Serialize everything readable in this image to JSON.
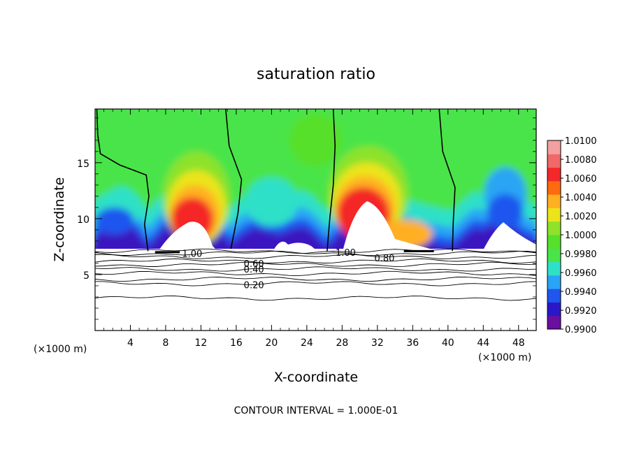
{
  "chart_data": {
    "type": "heatmap",
    "title": "saturation ratio",
    "xlabel": "X-coordinate",
    "ylabel": "Z-coordinate",
    "x_unit": "(×1000 m)",
    "x_unit_right": "(×1000 m)",
    "xlim": [
      0,
      50
    ],
    "ylim": [
      0,
      19.8
    ],
    "x_ticks": [
      4,
      8,
      12,
      16,
      20,
      24,
      28,
      32,
      36,
      40,
      44,
      48
    ],
    "x_tick_labels": [
      "4",
      "8",
      "12",
      "16",
      "20",
      "24",
      "28",
      "32",
      "36",
      "40",
      "44",
      "48"
    ],
    "y_ticks": [
      5,
      10,
      15
    ],
    "y_tick_labels": [
      "5",
      "10",
      "15"
    ],
    "colorbar": {
      "min": 0.99,
      "max": 1.01,
      "tick_labels": [
        "1.0100",
        "1.0080",
        "1.0060",
        "1.0040",
        "1.0020",
        "1.0000",
        "0.9980",
        "0.9960",
        "0.9940",
        "0.9920",
        "0.9900"
      ],
      "colors": [
        "#6a0fa0",
        "#2a18c8",
        "#1f56ee",
        "#2aa4f4",
        "#2fe0c8",
        "#49e44a",
        "#56e02a",
        "#8ee22a",
        "#ece41a",
        "#ffb020",
        "#ff6a10",
        "#f42828",
        "#f06868",
        "#f4a0a0"
      ]
    },
    "cloud_tops_km": [
      {
        "x": 0.0,
        "top": 8.1
      },
      {
        "x": 1.0,
        "top": 8.5
      },
      {
        "x": 2.0,
        "top": 9.0
      },
      {
        "x": 3.0,
        "top": 9.3
      },
      {
        "x": 4.0,
        "top": 9.0
      },
      {
        "x": 5.0,
        "top": 8.2
      },
      {
        "x": 6.0,
        "top": 7.1
      },
      {
        "x": 8.0,
        "top": 8.9
      },
      {
        "x": 10.0,
        "top": 9.9
      },
      {
        "x": 12.0,
        "top": 10.2
      },
      {
        "x": 14.0,
        "top": 8.6
      },
      {
        "x": 15.4,
        "top": 7.3
      },
      {
        "x": 16.5,
        "top": 8.1
      },
      {
        "x": 18.0,
        "top": 8.8
      },
      {
        "x": 20.0,
        "top": 8.4
      },
      {
        "x": 21.0,
        "top": 8.2
      },
      {
        "x": 22.0,
        "top": 8.6
      },
      {
        "x": 23.5,
        "top": 8.9
      },
      {
        "x": 24.5,
        "top": 8.5
      },
      {
        "x": 26.3,
        "top": 7.1
      },
      {
        "x": 28.0,
        "top": 8.6
      },
      {
        "x": 30.0,
        "top": 10.8
      },
      {
        "x": 32.0,
        "top": 10.2
      },
      {
        "x": 34.0,
        "top": 8.7
      },
      {
        "x": 36.0,
        "top": 7.9
      },
      {
        "x": 38.5,
        "top": 7.4
      },
      {
        "x": 40.5,
        "top": 7.1
      },
      {
        "x": 42.0,
        "top": 8.2
      },
      {
        "x": 43.0,
        "top": 8.8
      },
      {
        "x": 44.0,
        "top": 8.6
      },
      {
        "x": 46.0,
        "top": 9.6
      },
      {
        "x": 47.0,
        "top": 9.1
      },
      {
        "x": 48.5,
        "top": 8.1
      },
      {
        "x": 50.0,
        "top": 7.6
      }
    ],
    "boundary_1_0_lines_x": [
      [
        [
          0.2,
          19.8
        ],
        [
          0.3,
          17.5
        ],
        [
          0.6,
          15.8
        ],
        [
          2.8,
          14.8
        ],
        [
          5.8,
          13.9
        ],
        [
          6.1,
          12.0
        ],
        [
          5.6,
          9.5
        ],
        [
          6.0,
          7.1
        ]
      ],
      [
        [
          14.8,
          19.8
        ],
        [
          15.2,
          16.5
        ],
        [
          16.6,
          13.5
        ],
        [
          16.2,
          10.5
        ],
        [
          15.4,
          7.3
        ]
      ],
      [
        [
          27.0,
          19.8
        ],
        [
          27.2,
          16.5
        ],
        [
          27.0,
          13.0
        ],
        [
          26.6,
          10.0
        ],
        [
          26.3,
          7.1
        ]
      ],
      [
        [
          39.0,
          19.8
        ],
        [
          39.4,
          16.0
        ],
        [
          40.8,
          12.8
        ],
        [
          40.6,
          9.8
        ],
        [
          40.5,
          7.1
        ]
      ]
    ],
    "contour_levels_shown": [
      "1.00",
      "0.60",
      "0.40",
      "0.20",
      "1.00",
      "0.80"
    ],
    "contour_label_positions_km": [
      {
        "text": "1.00",
        "x": 11.0,
        "z": 6.9
      },
      {
        "text": "0.60",
        "x": 18.0,
        "z": 6.0
      },
      {
        "text": "0.40",
        "x": 18.0,
        "z": 5.5
      },
      {
        "text": "0.20",
        "x": 18.0,
        "z": 4.1
      },
      {
        "text": "1.00",
        "x": 28.4,
        "z": 7.0
      },
      {
        "text": "0.80",
        "x": 32.8,
        "z": 6.5
      }
    ]
  },
  "contour_note": "CONTOUR INTERVAL = 1.000E-01"
}
